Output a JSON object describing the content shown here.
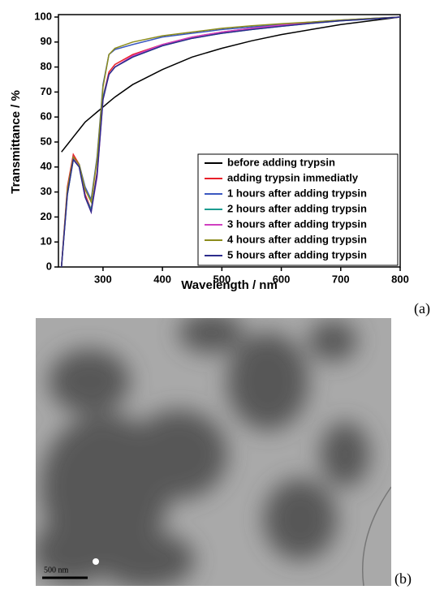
{
  "chart_data": {
    "type": "line",
    "x_label": "Wavelength / nm",
    "y_label": "Transmittance / %",
    "x": [
      230,
      240,
      250,
      260,
      270,
      280,
      290,
      300,
      310,
      320,
      350,
      400,
      450,
      500,
      550,
      600,
      650,
      700,
      750,
      800
    ],
    "series": [
      {
        "name": "before adding trypsin",
        "color": "#000000",
        "values": [
          46,
          49,
          52,
          55,
          58,
          60,
          62,
          64,
          66,
          68,
          73,
          79,
          84,
          87.5,
          90.5,
          93,
          95,
          97,
          98.5,
          100
        ]
      },
      {
        "name": "adding trypsin immediatly",
        "color": "#e8202a",
        "values": [
          0,
          32,
          45,
          41,
          29,
          23,
          38,
          68,
          78,
          81,
          85,
          89,
          92,
          94,
          95.5,
          96.8,
          97.8,
          98.6,
          99.3,
          100
        ]
      },
      {
        "name": "1 hours after adding trypsin",
        "color": "#3a58c0",
        "values": [
          0,
          30,
          43,
          41,
          32,
          27,
          44,
          73,
          85,
          87,
          89,
          92,
          93.5,
          95,
          96,
          97,
          98,
          98.8,
          99.4,
          100
        ]
      },
      {
        "name": "2 hours after adding trypsin",
        "color": "#1c9c90",
        "values": [
          0,
          29,
          43,
          40,
          28,
          23,
          37,
          68,
          77,
          80,
          84,
          88.5,
          91.5,
          93.5,
          95,
          96.3,
          97.5,
          98.5,
          99.2,
          100
        ]
      },
      {
        "name": "3 hours after adding trypsin",
        "color": "#d040c0",
        "values": [
          0,
          30,
          44,
          40,
          28,
          22,
          36,
          67,
          77,
          80,
          84.5,
          89,
          92,
          94,
          95.5,
          96.8,
          97.8,
          98.6,
          99.3,
          100
        ]
      },
      {
        "name": "4 hours after adding trypsin",
        "color": "#8c8c1c",
        "values": [
          0,
          31,
          44,
          41,
          31,
          26,
          43,
          72,
          85,
          87.5,
          90,
          92.5,
          94,
          95.5,
          96.5,
          97.3,
          98,
          98.8,
          99.4,
          100
        ]
      },
      {
        "name": "5 hours after adding trypsin",
        "color": "#2c2c8c",
        "values": [
          0,
          29,
          43,
          40,
          28,
          22,
          37,
          67,
          77,
          80,
          84,
          88.5,
          91.5,
          93.5,
          95,
          96.3,
          97.5,
          98.5,
          99.2,
          100
        ]
      }
    ],
    "xlim": [
      225,
      800
    ],
    "xticks": [
      300,
      400,
      500,
      600,
      700,
      800
    ],
    "ylim": [
      0,
      100
    ],
    "yticks": [
      0,
      10,
      20,
      30,
      40,
      50,
      60,
      70,
      80,
      90,
      100
    ],
    "legend": "lower right"
  },
  "panel_labels": [
    "(a)",
    "(b)"
  ],
  "image": {
    "scale_bar": "500 nm"
  }
}
